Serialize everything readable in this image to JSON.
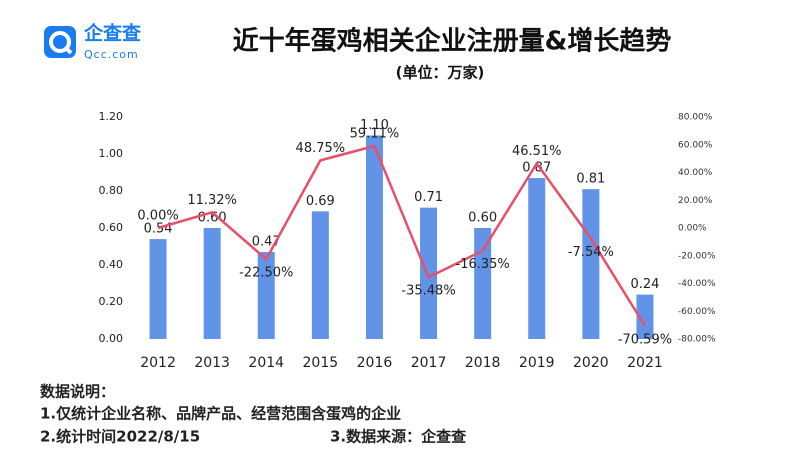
{
  "chart_data": {
    "type": "bar",
    "logo": {
      "name": "企查查",
      "url": "Qcc.com"
    },
    "title": "近十年蛋鸡相关企业注册量&增长趋势",
    "subtitle": "(单位：万家)",
    "categories": [
      "2012",
      "2013",
      "2014",
      "2015",
      "2016",
      "2017",
      "2018",
      "2019",
      "2020",
      "2021"
    ],
    "series": [
      {
        "name": "注册量",
        "type": "bar",
        "color": "#6194e6",
        "values": [
          0.54,
          0.6,
          0.47,
          0.69,
          1.1,
          0.71,
          0.6,
          0.87,
          0.81,
          0.24
        ],
        "value_labels": [
          "0.54",
          "0.60",
          "0.47",
          "0.69",
          "1.10",
          "0.71",
          "0.60",
          "0.87",
          "0.81",
          "0.24"
        ]
      },
      {
        "name": "增长率",
        "type": "line",
        "axis": "y2",
        "color": "#e8506a",
        "values": [
          0,
          11.32,
          -22.5,
          48.75,
          59.11,
          -35.48,
          -16.35,
          46.51,
          -7.54,
          -70.59
        ],
        "value_labels": [
          "0.00%",
          "11.32%",
          "-22.50%",
          "48.75%",
          "59.11%",
          "-35.48%",
          "-16.35%",
          "46.51%",
          "-7.54%",
          "-70.59%"
        ]
      }
    ],
    "ylim": [
      0,
      1.2
    ],
    "yticks": [
      {
        "value": 0,
        "label": "0.00"
      },
      {
        "value": 0.2,
        "label": "0.20"
      },
      {
        "value": 0.4,
        "label": "0.40"
      },
      {
        "value": 0.6,
        "label": "0.60"
      },
      {
        "value": 0.8,
        "label": "0.80"
      },
      {
        "value": 1,
        "label": "1.00"
      },
      {
        "value": 1.2,
        "label": "1.20"
      }
    ],
    "y2lim": [
      -80,
      80
    ],
    "y2ticks": [
      {
        "value": -80,
        "label": "-80.00%"
      },
      {
        "value": -60,
        "label": "-60.00%"
      },
      {
        "value": -40,
        "label": "-40.00%"
      },
      {
        "value": -20,
        "label": "-20.00%"
      },
      {
        "value": 0,
        "label": "0.00%"
      },
      {
        "value": 20,
        "label": "20.00%"
      },
      {
        "value": 40,
        "label": "40.00%"
      },
      {
        "value": 60,
        "label": "60.00%"
      },
      {
        "value": 80,
        "label": "80.00%"
      }
    ],
    "grid": false,
    "notes": [
      "数据说明：",
      "1.仅统计企业名称、品牌产品、经营范围含蛋鸡的企业",
      "2.统计时间2022/8/15",
      "3.数据来源：企查查"
    ]
  }
}
